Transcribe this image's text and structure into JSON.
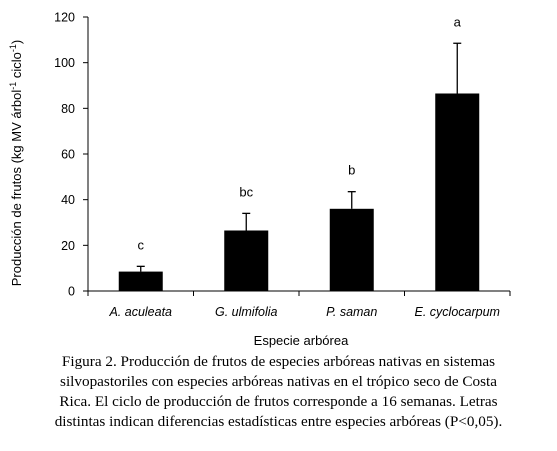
{
  "chart_data": {
    "type": "bar",
    "categories": [
      "A. aculeata",
      "G. ulmifolia",
      "P. saman",
      "E. cyclocarpum"
    ],
    "values": [
      8.5,
      26.5,
      36,
      86.5
    ],
    "error_upper": [
      10.8,
      34,
      43.5,
      108.5
    ],
    "significance_letters": [
      "c",
      "bc",
      "b",
      "a"
    ],
    "xlabel": "Especie arbórea",
    "ylabel": "Producción de frutos (kg MV árbol",
    "ylabel_sup1": "-1",
    "ylabel_mid": " ciclo",
    "ylabel_sup2": "-1",
    "ylabel_end": ")",
    "ylim": [
      0,
      120
    ],
    "yticks": [
      0,
      20,
      40,
      60,
      80,
      100,
      120
    ],
    "bar_color": "#000000",
    "grid": false
  },
  "caption": {
    "lines": [
      "Figura 2. Producción de frutos de especies arbóreas nativas en sistemas",
      "silvopastoriles con especies arbóreas nativas en el trópico seco de Costa",
      "Rica. El ciclo de producción de frutos corresponde a 16 semanas. Letras",
      "distintas indican diferencias estadísticas entre especies arbóreas (P<0,05)."
    ]
  }
}
